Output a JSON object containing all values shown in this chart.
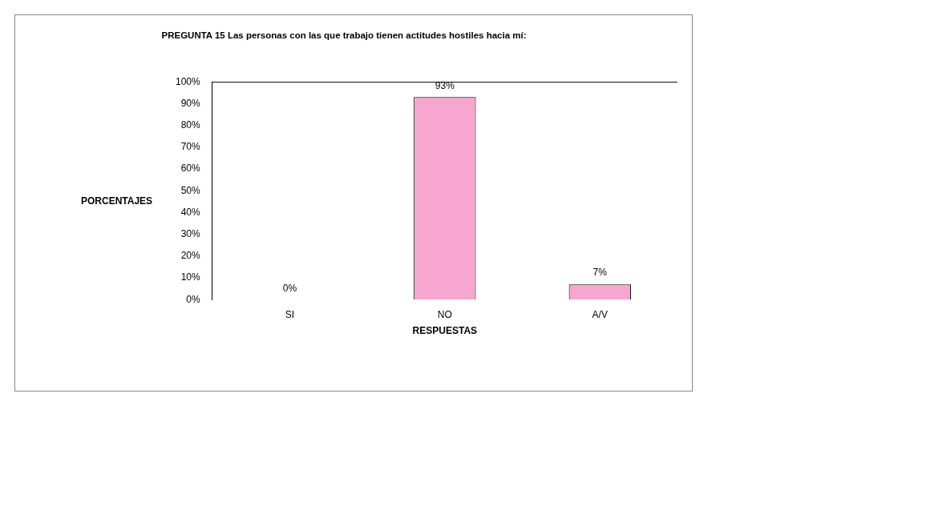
{
  "chart_data": {
    "type": "bar",
    "title": "PREGUNTA 15 Las personas con las que trabajo tienen actitudes hostiles hacia mí:",
    "xlabel": "RESPUESTAS",
    "ylabel": "PORCENTAJES",
    "categories": [
      "SI",
      "NO",
      "A/V"
    ],
    "values": [
      0,
      93,
      7
    ],
    "color": "#f7a6cf",
    "value_labels": [
      "0%",
      "93%",
      "7%"
    ],
    "ylim": [
      0,
      100
    ],
    "yticks": [
      {
        "value": 0,
        "label": "0%"
      },
      {
        "value": 10,
        "label": "10%"
      },
      {
        "value": 20,
        "label": "20%"
      },
      {
        "value": 30,
        "label": "30%"
      },
      {
        "value": 40,
        "label": "40%"
      },
      {
        "value": 50,
        "label": "50%"
      },
      {
        "value": 60,
        "label": "60%"
      },
      {
        "value": 70,
        "label": "70%"
      },
      {
        "value": 80,
        "label": "80%"
      },
      {
        "value": 90,
        "label": "90%"
      },
      {
        "value": 100,
        "label": "100%"
      }
    ],
    "grid": false,
    "legend": false
  }
}
